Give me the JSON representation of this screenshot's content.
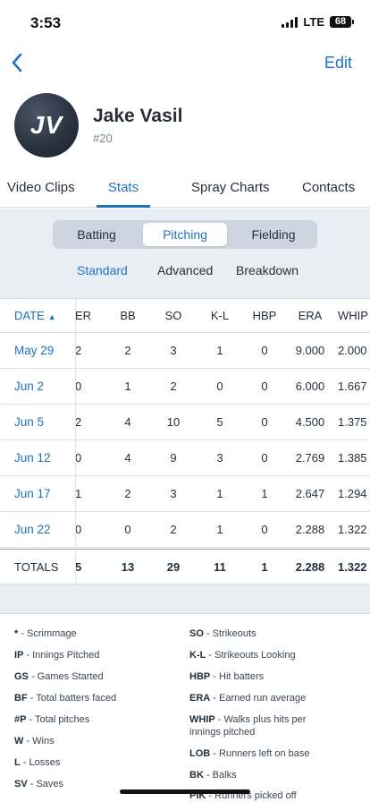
{
  "status": {
    "time": "3:53",
    "network": "LTE",
    "battery": "68"
  },
  "nav": {
    "back_icon": "chevron-left-icon",
    "edit_label": "Edit"
  },
  "profile": {
    "initials": "JV",
    "name": "Jake Vasil",
    "number": "#20"
  },
  "tabs": [
    "Video Clips",
    "Stats",
    "Spray Charts",
    "Contacts"
  ],
  "active_tab": "Stats",
  "segments": [
    "Batting",
    "Pitching",
    "Fielding"
  ],
  "active_segment": "Pitching",
  "subtabs": [
    "Standard",
    "Advanced",
    "Breakdown"
  ],
  "active_subtab": "Standard",
  "table": {
    "date_header": "DATE",
    "sort_icon": "▲",
    "columns": [
      "ER",
      "BB",
      "SO",
      "K-L",
      "HBP",
      "ERA",
      "WHIP"
    ],
    "rows": [
      {
        "date": "May 29",
        "values": [
          "2",
          "2",
          "3",
          "1",
          "0",
          "9.000",
          "2.000"
        ]
      },
      {
        "date": "Jun 2",
        "values": [
          "0",
          "1",
          "2",
          "0",
          "0",
          "6.000",
          "1.667"
        ]
      },
      {
        "date": "Jun 5",
        "values": [
          "2",
          "4",
          "10",
          "5",
          "0",
          "4.500",
          "1.375"
        ]
      },
      {
        "date": "Jun 12",
        "values": [
          "0",
          "4",
          "9",
          "3",
          "0",
          "2.769",
          "1.385"
        ]
      },
      {
        "date": "Jun 17",
        "values": [
          "1",
          "2",
          "3",
          "1",
          "1",
          "2.647",
          "1.294"
        ]
      },
      {
        "date": "Jun 22",
        "values": [
          "0",
          "0",
          "2",
          "1",
          "0",
          "2.288",
          "1.322"
        ]
      }
    ],
    "totals": {
      "label": "TOTALS",
      "values": [
        "5",
        "13",
        "29",
        "11",
        "1",
        "2.288",
        "1.322"
      ]
    }
  },
  "legend": {
    "left": [
      {
        "abbr": "*",
        "desc": " - Scrimmage"
      },
      {
        "abbr": "IP",
        "desc": " - Innings Pitched"
      },
      {
        "abbr": "GS",
        "desc": " - Games Started"
      },
      {
        "abbr": "BF",
        "desc": " - Total batters faced"
      },
      {
        "abbr": "#P",
        "desc": " - Total pitches"
      },
      {
        "abbr": "W",
        "desc": " - Wins"
      },
      {
        "abbr": "L",
        "desc": " - Losses"
      },
      {
        "abbr": "SV",
        "desc": " - Saves"
      }
    ],
    "right": [
      {
        "abbr": "SO",
        "desc": " - Strikeouts"
      },
      {
        "abbr": "K-L",
        "desc": " - Strikeouts Looking"
      },
      {
        "abbr": "HBP",
        "desc": " - Hit batters"
      },
      {
        "abbr": "ERA",
        "desc": " - Earned run average"
      },
      {
        "abbr": "WHIP",
        "desc": " - Walks plus hits per innings pitched"
      },
      {
        "abbr": "LOB",
        "desc": " - Runners left on base"
      },
      {
        "abbr": "BK",
        "desc": " - Balks"
      },
      {
        "abbr": "PIK",
        "desc": " - Runners picked off"
      }
    ]
  },
  "colors": {
    "accent": "#1e73be",
    "panel": "#e9eef5",
    "text": "#1f2d3d"
  }
}
